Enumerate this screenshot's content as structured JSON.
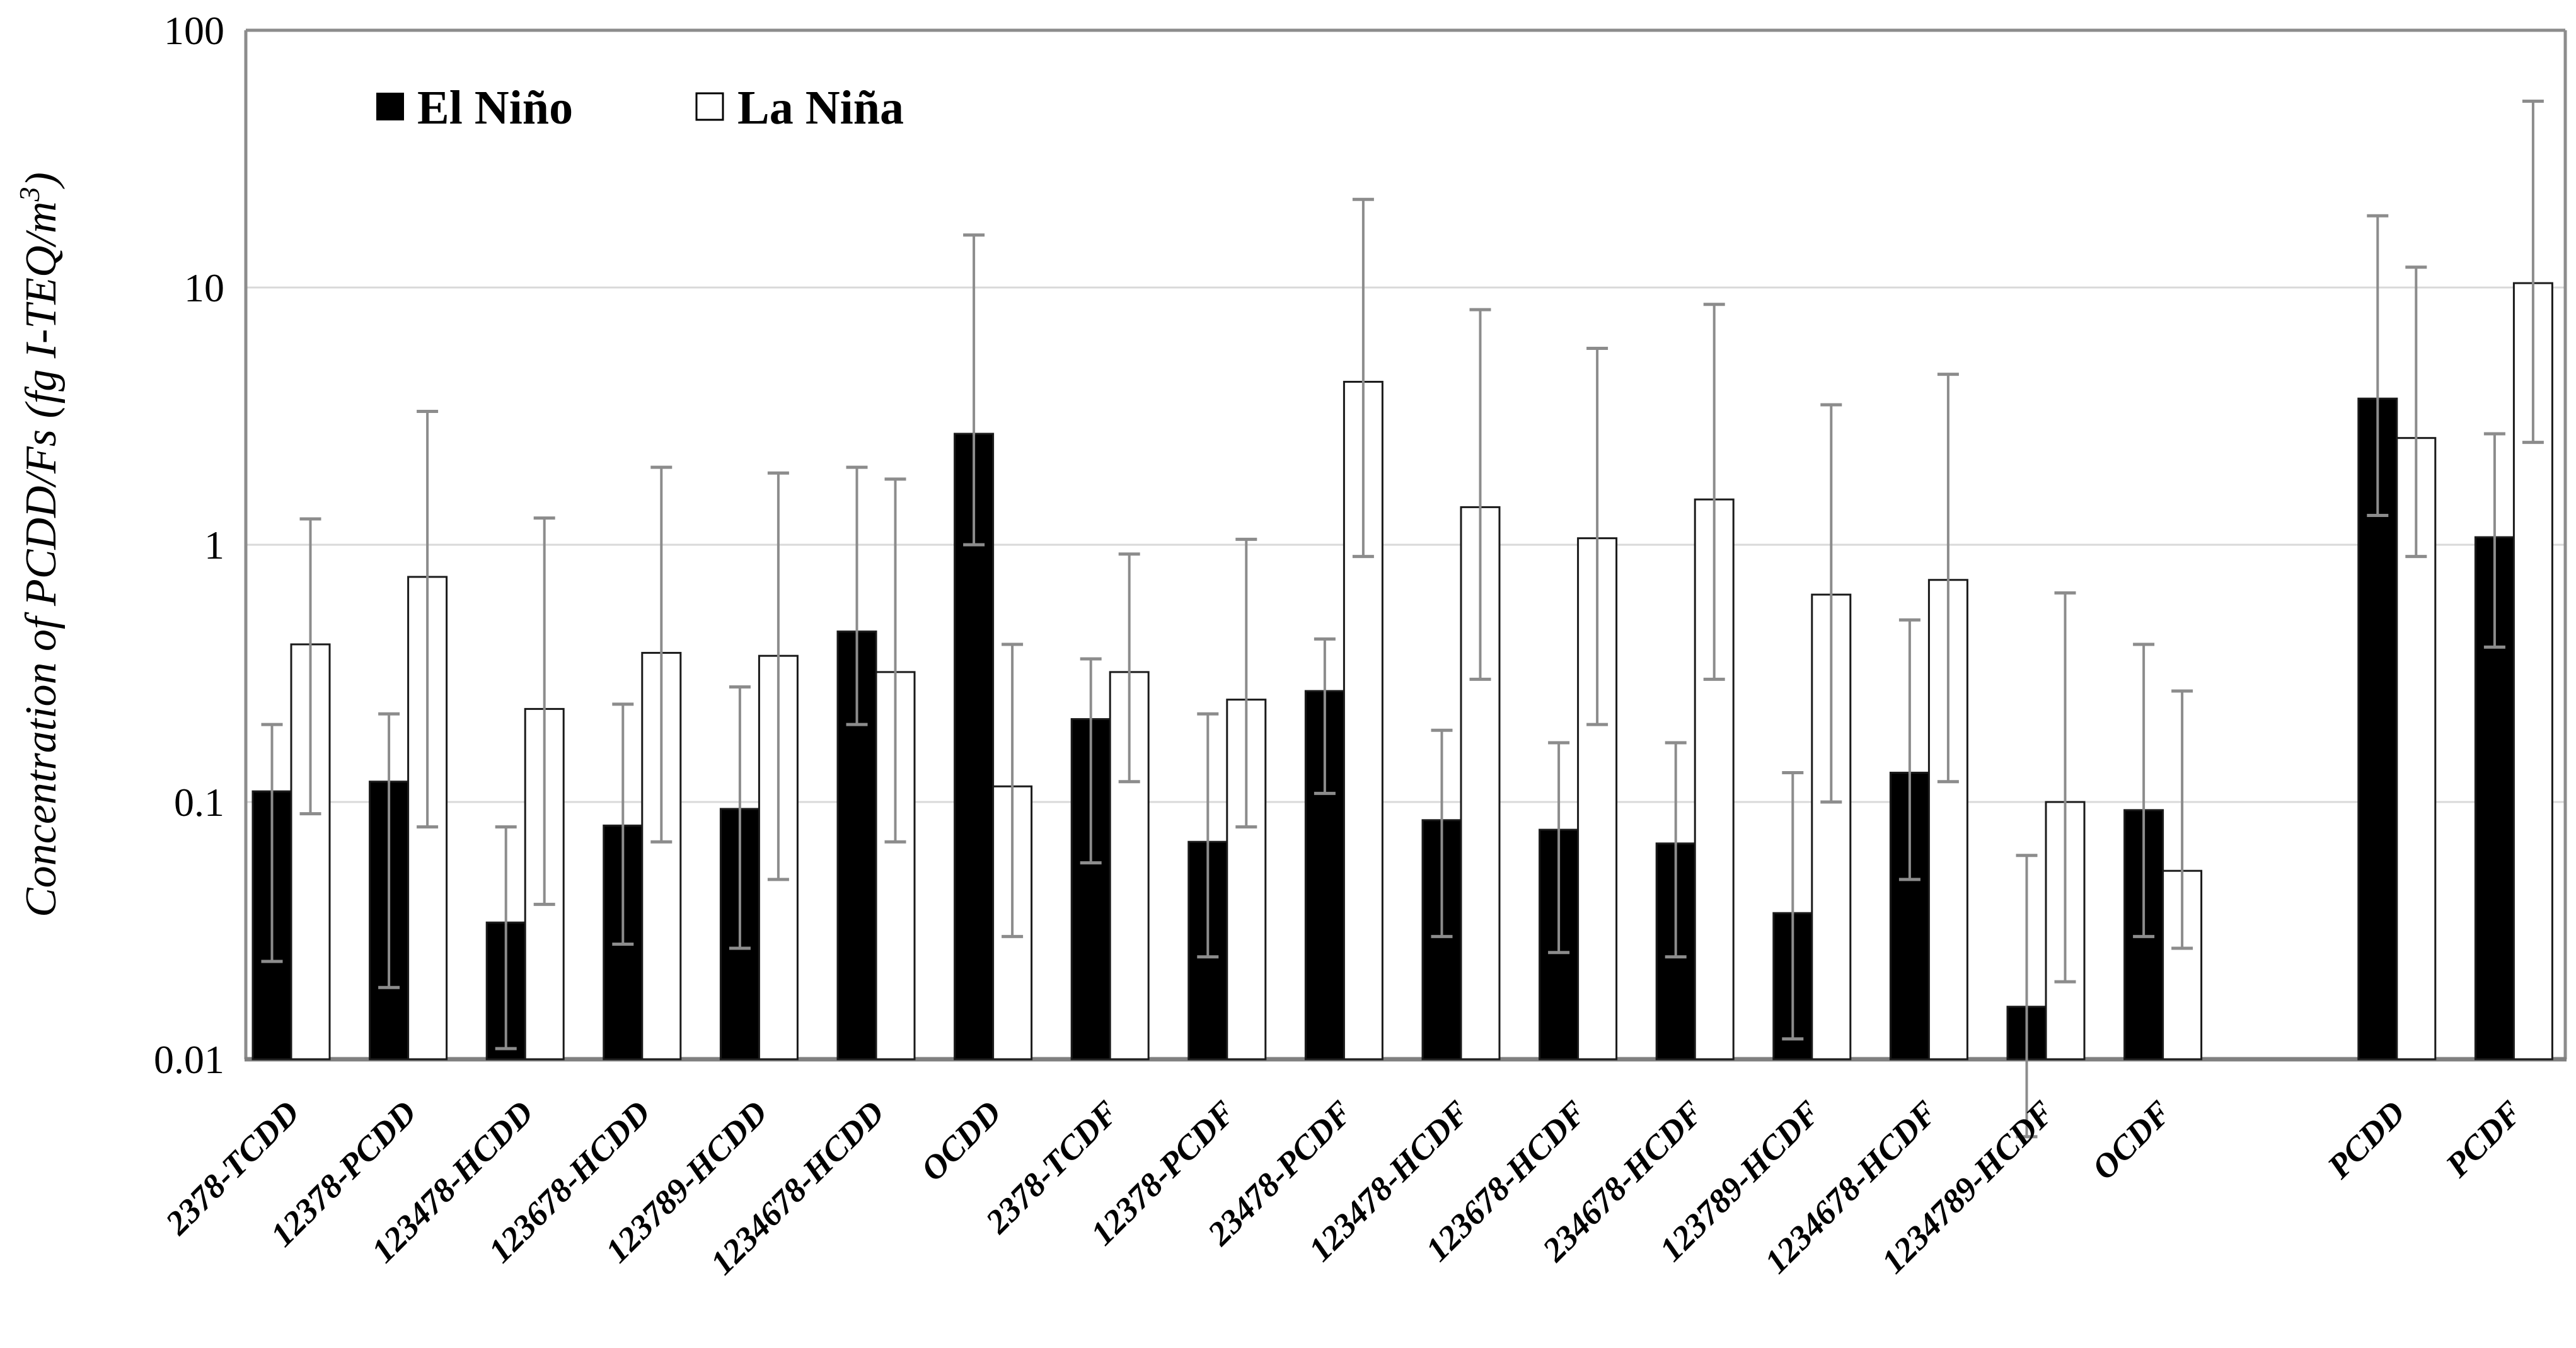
{
  "figure": {
    "y_axis": {
      "title_prefix": "Concentration of PCDD/Fs (fg I-TEQ/m",
      "title_sup": "3",
      "title_suffix": ")",
      "tick_labels": [
        "100",
        "10",
        "1",
        "0.1",
        "0.01"
      ]
    },
    "legend": {
      "items": [
        {
          "label": "El Niño",
          "swatch": "#000000"
        },
        {
          "label": "La Niña",
          "swatch": "#ffffff"
        }
      ]
    },
    "colors": {
      "bar_black": "#000000",
      "bar_white": "#ffffff",
      "bar_outline": "#1a1a1a",
      "error_bar": "#8c8c8c",
      "gridline": "#d9d9d9",
      "frame": "#8c8c8c",
      "baseline": "#808080",
      "text": "#000000"
    }
  },
  "chart_data": {
    "type": "bar",
    "scale": "log",
    "ylim": [
      0.01,
      100
    ],
    "yticks": [
      100,
      10,
      1,
      0.1,
      0.01
    ],
    "ylabel": "Concentration of PCDD/Fs (fg I-TEQ/m3)",
    "xlabel": "",
    "grid": "horizontal-decades",
    "legend_position": "top-left-inside",
    "separator_after_index": 16,
    "categories": [
      "2378-TCDD",
      "12378-PCDD",
      "123478-HCDD",
      "123678-HCDD",
      "123789-HCDD",
      "1234678-HCDD",
      "OCDD",
      "2378-TCDF",
      "12378-PCDF",
      "23478-PCDF",
      "123478-HCDF",
      "123678-HCDF",
      "234678-HCDF",
      "123789-HCDF",
      "1234678-HCDF",
      "1234789-HCDF",
      "OCDF",
      "PCDD",
      "PCDF"
    ],
    "series": [
      {
        "name": "El Niño",
        "fill": "#000000",
        "values": [
          0.11,
          0.12,
          0.034,
          0.081,
          0.094,
          0.46,
          2.7,
          0.21,
          0.07,
          0.27,
          0.085,
          0.078,
          0.069,
          0.037,
          0.13,
          0.016,
          0.093,
          3.7,
          1.07
        ],
        "err_low": [
          0.024,
          0.019,
          0.011,
          0.028,
          0.027,
          0.2,
          1.0,
          0.058,
          0.025,
          0.108,
          0.03,
          0.026,
          0.025,
          0.012,
          0.05,
          0.005,
          0.03,
          1.3,
          0.4
        ],
        "err_high": [
          0.2,
          0.22,
          0.08,
          0.24,
          0.28,
          2.0,
          16,
          0.36,
          0.22,
          0.43,
          0.19,
          0.17,
          0.17,
          0.13,
          0.51,
          0.062,
          0.41,
          19,
          2.7
        ]
      },
      {
        "name": "La Niña",
        "fill": "#ffffff",
        "values": [
          0.41,
          0.75,
          0.23,
          0.38,
          0.37,
          0.32,
          0.115,
          0.32,
          0.25,
          4.3,
          1.4,
          1.06,
          1.5,
          0.64,
          0.73,
          0.1,
          0.054,
          2.6,
          10.4
        ],
        "err_low": [
          0.09,
          0.08,
          0.04,
          0.07,
          0.05,
          0.07,
          0.03,
          0.12,
          0.08,
          0.9,
          0.3,
          0.2,
          0.3,
          0.1,
          0.12,
          0.02,
          0.027,
          0.9,
          2.5
        ],
        "err_high": [
          1.26,
          3.3,
          1.27,
          2.0,
          1.9,
          1.8,
          0.41,
          0.92,
          1.05,
          22,
          8.2,
          5.8,
          8.6,
          3.5,
          4.6,
          0.65,
          0.27,
          12,
          53
        ]
      }
    ]
  }
}
